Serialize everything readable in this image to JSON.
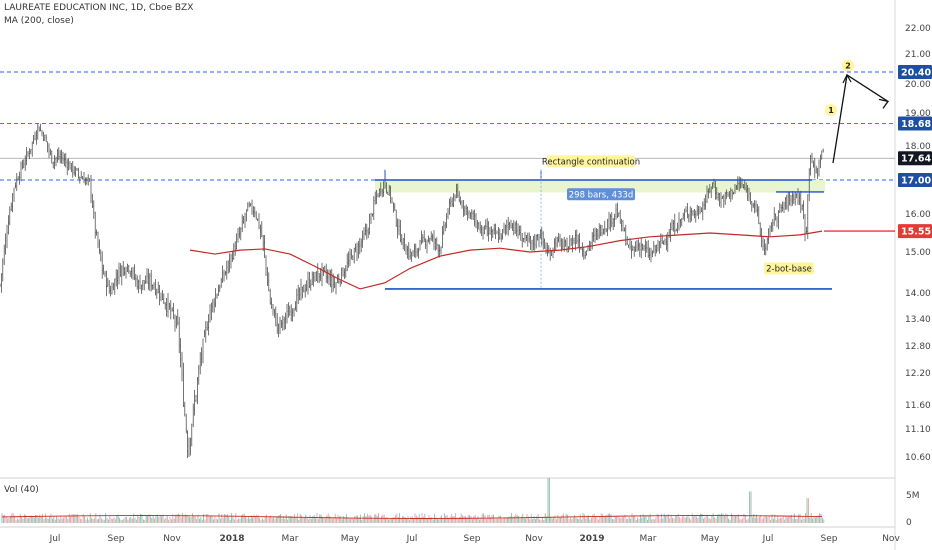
{
  "header": {
    "symbol_line": "LAUREATE EDUCATION INC, 1D, Cboe BZX",
    "ma_label": "MA (200, close)",
    "vol_label": "Vol (40)"
  },
  "colors": {
    "accent_blue": "#1e4fd1",
    "ma_red": "#c62828",
    "tag_blue": "#1f4fa3",
    "tag_red": "#e53935",
    "tag_dark": "#131722",
    "annot_yellow": "#fff59d",
    "measure_box": "#5f8fd6",
    "rect_fill": "#e6f4c9"
  },
  "chart_data": {
    "type": "candlestick",
    "title": "LAUREATE EDUCATION INC, 1D, Cboe BZX",
    "ylim": [
      10.3,
      22.3
    ],
    "y_ticks": [
      "22.00",
      "21.00",
      "20.00",
      "19.00",
      "18.00",
      "16.00",
      "15.00",
      "14.00",
      "13.40",
      "12.80",
      "12.20",
      "11.60",
      "11.10",
      "10.60"
    ],
    "x_ticks": [
      "Jul",
      "Sep",
      "Nov",
      "2018",
      "Mar",
      "May",
      "Jul",
      "Sep",
      "Nov",
      "2019",
      "Mar",
      "May",
      "Jul",
      "Sep",
      "Nov"
    ],
    "x_ticks_bold": [
      "2018",
      "2019"
    ],
    "price_tags": [
      {
        "value": "20.40",
        "price": 20.4,
        "color": "#1f4fa3"
      },
      {
        "value": "18.68",
        "price": 18.68,
        "color": "#1f4fa3"
      },
      {
        "value": "17.64",
        "price": 17.64,
        "color": "#131722"
      },
      {
        "value": "17.00",
        "price": 17.0,
        "color": "#1f4fa3"
      },
      {
        "value": "15.55",
        "price": 15.55,
        "color": "#e53935"
      }
    ],
    "price_anchors": [
      [
        0,
        14.2
      ],
      [
        8,
        15.8
      ],
      [
        14,
        16.8
      ],
      [
        22,
        17.4
      ],
      [
        30,
        17.9
      ],
      [
        38,
        18.6
      ],
      [
        44,
        18.3
      ],
      [
        52,
        17.6
      ],
      [
        60,
        17.7
      ],
      [
        70,
        17.4
      ],
      [
        80,
        17.1
      ],
      [
        90,
        16.9
      ],
      [
        95,
        15.6
      ],
      [
        102,
        14.6
      ],
      [
        110,
        14.0
      ],
      [
        118,
        14.5
      ],
      [
        128,
        14.7
      ],
      [
        138,
        14.2
      ],
      [
        150,
        14.3
      ],
      [
        160,
        14.0
      ],
      [
        170,
        13.6
      ],
      [
        178,
        13.2
      ],
      [
        183,
        11.8
      ],
      [
        188,
        10.7
      ],
      [
        195,
        11.7
      ],
      [
        202,
        12.7
      ],
      [
        210,
        13.6
      ],
      [
        220,
        14.2
      ],
      [
        230,
        14.8
      ],
      [
        240,
        15.5
      ],
      [
        248,
        16.2
      ],
      [
        255,
        16.1
      ],
      [
        262,
        15.4
      ],
      [
        270,
        13.8
      ],
      [
        278,
        13.2
      ],
      [
        288,
        13.5
      ],
      [
        298,
        13.9
      ],
      [
        310,
        14.3
      ],
      [
        322,
        14.5
      ],
      [
        335,
        14.2
      ],
      [
        345,
        14.6
      ],
      [
        352,
        14.9
      ],
      [
        360,
        15.2
      ],
      [
        368,
        15.6
      ],
      [
        376,
        16.5
      ],
      [
        384,
        16.9
      ],
      [
        390,
        16.6
      ],
      [
        398,
        15.6
      ],
      [
        405,
        15.1
      ],
      [
        412,
        14.9
      ],
      [
        420,
        15.2
      ],
      [
        430,
        15.4
      ],
      [
        440,
        15.1
      ],
      [
        448,
        16.1
      ],
      [
        455,
        16.6
      ],
      [
        462,
        16.3
      ],
      [
        470,
        16.0
      ],
      [
        480,
        15.6
      ],
      [
        490,
        15.5
      ],
      [
        500,
        15.4
      ],
      [
        510,
        15.8
      ],
      [
        518,
        15.5
      ],
      [
        525,
        15.3
      ],
      [
        532,
        15.2
      ],
      [
        540,
        15.5
      ],
      [
        548,
        14.9
      ],
      [
        556,
        15.3
      ],
      [
        566,
        15.1
      ],
      [
        576,
        15.4
      ],
      [
        584,
        15.0
      ],
      [
        592,
        15.3
      ],
      [
        600,
        15.6
      ],
      [
        610,
        15.8
      ],
      [
        616,
        16.1
      ],
      [
        624,
        15.5
      ],
      [
        630,
        15.0
      ],
      [
        640,
        15.2
      ],
      [
        650,
        14.9
      ],
      [
        656,
        15.1
      ],
      [
        664,
        15.3
      ],
      [
        672,
        15.6
      ],
      [
        680,
        15.8
      ],
      [
        688,
        16.1
      ],
      [
        696,
        16.0
      ],
      [
        704,
        16.3
      ],
      [
        712,
        16.9
      ],
      [
        720,
        16.4
      ],
      [
        730,
        16.6
      ],
      [
        740,
        16.9
      ],
      [
        748,
        16.6
      ],
      [
        756,
        16.2
      ],
      [
        762,
        15.2
      ],
      [
        766,
        15.1
      ],
      [
        772,
        15.8
      ],
      [
        780,
        16.1
      ],
      [
        788,
        16.4
      ],
      [
        796,
        16.6
      ],
      [
        802,
        16.2
      ],
      [
        806,
        15.4
      ],
      [
        810,
        17.9
      ],
      [
        814,
        17.2
      ],
      [
        818,
        17.3
      ],
      [
        822,
        17.9
      ],
      [
        824,
        17.64
      ]
    ],
    "ma200": [
      [
        190,
        15.05
      ],
      [
        215,
        14.95
      ],
      [
        240,
        15.05
      ],
      [
        265,
        15.08
      ],
      [
        290,
        14.95
      ],
      [
        315,
        14.65
      ],
      [
        338,
        14.35
      ],
      [
        360,
        14.1
      ],
      [
        385,
        14.25
      ],
      [
        410,
        14.6
      ],
      [
        440,
        14.9
      ],
      [
        470,
        15.05
      ],
      [
        500,
        15.1
      ],
      [
        530,
        15.0
      ],
      [
        560,
        15.05
      ],
      [
        590,
        15.15
      ],
      [
        620,
        15.3
      ],
      [
        650,
        15.4
      ],
      [
        680,
        15.45
      ],
      [
        710,
        15.5
      ],
      [
        740,
        15.45
      ],
      [
        770,
        15.4
      ],
      [
        800,
        15.45
      ],
      [
        822,
        15.55
      ]
    ],
    "horizontal_levels": [
      {
        "price": 20.4,
        "style": "dashed"
      },
      {
        "price": 18.68,
        "style": "dashed"
      },
      {
        "price": 17.64,
        "style": "solid-gray"
      },
      {
        "price": 17.0,
        "style": "dashed"
      }
    ],
    "annotations": {
      "rect_label": "Rectangle continuation",
      "measure_label": "298 bars, 433d",
      "base_label": "2-bot-base",
      "wave1_label": "1",
      "wave2_label": "2"
    },
    "volume": {
      "label": "Vol (40)",
      "ticks": [
        "5M",
        "0"
      ],
      "spikes": [
        [
          549,
          1.0
        ],
        [
          750,
          0.7
        ],
        [
          808,
          0.55
        ]
      ]
    }
  }
}
